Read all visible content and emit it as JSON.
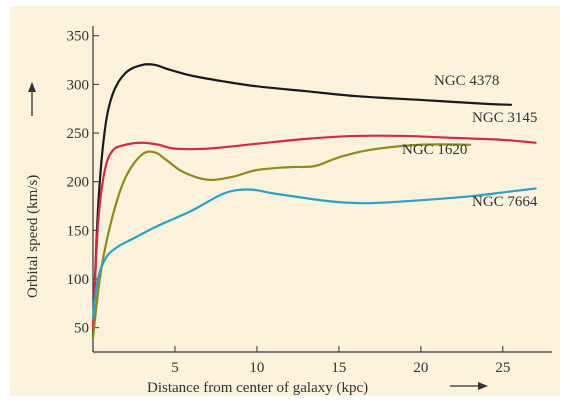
{
  "chart_data": {
    "type": "line",
    "title": "",
    "xlabel": "Distance from center of  galaxy (kpc)",
    "ylabel": "Orbital speed (km/s)",
    "xlim": [
      0,
      28
    ],
    "ylim": [
      25,
      360
    ],
    "xticks": [
      5,
      10,
      15,
      20,
      25
    ],
    "yticks": [
      50,
      100,
      150,
      200,
      250,
      300,
      350
    ],
    "grid": false,
    "legend": "labels placed beside each curve",
    "series": [
      {
        "name": "NGC 4378",
        "color": "#1a1a1a",
        "x": [
          0,
          0.3,
          0.7,
          1.2,
          2.0,
          3.0,
          3.8,
          4.5,
          6,
          8,
          10,
          13,
          16,
          20,
          24,
          25.5
        ],
        "y": [
          40,
          170,
          250,
          290,
          312,
          320,
          320,
          316,
          309,
          303,
          298,
          293,
          288,
          284,
          280,
          279
        ]
      },
      {
        "name": "NGC 3145",
        "color": "#d6284b",
        "x": [
          0,
          0.3,
          0.7,
          1.2,
          2.0,
          3.0,
          4.0,
          5.0,
          7,
          10,
          13,
          16,
          19,
          22,
          25,
          27
        ],
        "y": [
          50,
          155,
          210,
          232,
          238,
          240,
          238,
          234,
          234,
          239,
          244,
          247,
          247,
          245,
          243,
          240
        ]
      },
      {
        "name": "NGC 1620",
        "color": "#8e8a1c",
        "x": [
          0,
          0.5,
          1.2,
          2.0,
          3.0,
          3.8,
          4.5,
          5.5,
          7,
          8.5,
          10,
          12,
          13.5,
          15,
          17,
          20,
          23
        ],
        "y": [
          40,
          110,
          165,
          205,
          228,
          230,
          222,
          210,
          202,
          205,
          212,
          215,
          216,
          225,
          233,
          238,
          238
        ]
      },
      {
        "name": "NGC 7664",
        "color": "#2f9fc7",
        "x": [
          0,
          0.3,
          0.8,
          1.5,
          2.5,
          4,
          6,
          8,
          9.5,
          11,
          13,
          15,
          17,
          20,
          23,
          25,
          27
        ],
        "y": [
          60,
          100,
          122,
          133,
          142,
          155,
          170,
          188,
          192,
          188,
          183,
          179,
          178,
          181,
          185,
          189,
          193
        ]
      }
    ]
  }
}
